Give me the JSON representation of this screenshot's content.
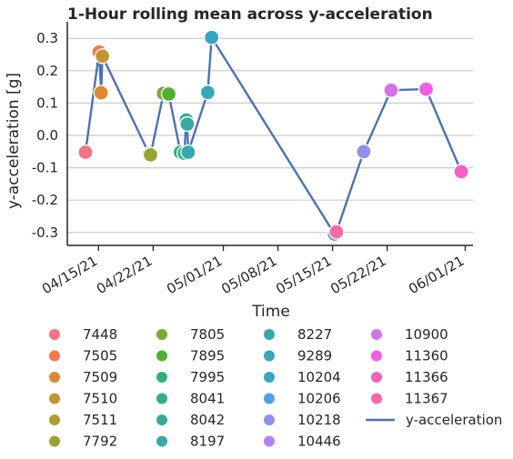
{
  "chart_data": {
    "type": "scatter",
    "title": "1-Hour rolling mean across y-acceleration",
    "xlabel": "Time",
    "ylabel": "y-acceleration [g]",
    "x_tick_labels": [
      "04/15/21",
      "04/22/21",
      "05/01/21",
      "05/08/21",
      "05/15/21",
      "05/22/21",
      "06/01/21"
    ],
    "x_tick_dates": [
      "2021-04-15",
      "2021-04-22",
      "2021-05-01",
      "2021-05-08",
      "2021-05-15",
      "2021-05-22",
      "2021-06-01"
    ],
    "xlim": [
      "2021-04-11",
      "2021-06-02"
    ],
    "y_ticks": [
      -0.3,
      -0.2,
      -0.1,
      0.0,
      0.1,
      0.2,
      0.3
    ],
    "ylim": [
      -0.34,
      0.34
    ],
    "grid": "horizontal",
    "line_series": {
      "name": "y-acceleration",
      "color": "#4c72b0",
      "points": [
        {
          "x": "2021-04-13 08:00",
          "y": -0.052
        },
        {
          "x": "2021-04-15 02:00",
          "y": 0.258
        },
        {
          "x": "2021-04-15 08:00",
          "y": 0.132
        },
        {
          "x": "2021-04-15 12:00",
          "y": 0.245
        },
        {
          "x": "2021-04-21 12:00",
          "y": -0.058
        },
        {
          "x": "2021-04-21 16:00",
          "y": -0.06
        },
        {
          "x": "2021-04-23 08:00",
          "y": 0.13
        },
        {
          "x": "2021-04-24 00:00",
          "y": 0.128
        },
        {
          "x": "2021-04-25 12:00",
          "y": -0.052
        },
        {
          "x": "2021-04-26 00:00",
          "y": -0.055
        },
        {
          "x": "2021-04-26 06:00",
          "y": 0.048
        },
        {
          "x": "2021-04-26 09:00",
          "y": 0.035
        },
        {
          "x": "2021-04-26 12:00",
          "y": -0.052
        },
        {
          "x": "2021-04-29 00:00",
          "y": 0.133
        },
        {
          "x": "2021-04-29 12:00",
          "y": 0.303
        },
        {
          "x": "2021-05-15 06:00",
          "y": -0.305
        },
        {
          "x": "2021-05-15 12:00",
          "y": -0.298
        },
        {
          "x": "2021-05-19 00:00",
          "y": -0.05
        },
        {
          "x": "2021-05-22 12:00",
          "y": 0.14
        },
        {
          "x": "2021-05-27 00:00",
          "y": 0.143
        },
        {
          "x": "2021-05-31 12:00",
          "y": -0.112
        }
      ]
    },
    "series": [
      {
        "name": "7448",
        "color": "#f77189",
        "points": [
          {
            "x": "2021-04-13 08:00",
            "y": -0.052
          }
        ]
      },
      {
        "name": "7505",
        "color": "#f7754f",
        "points": [
          {
            "x": "2021-04-15 02:00",
            "y": 0.258
          }
        ]
      },
      {
        "name": "7509",
        "color": "#dc8932",
        "points": [
          {
            "x": "2021-04-15 08:00",
            "y": 0.132
          }
        ]
      },
      {
        "name": "7510",
        "color": "#c39532",
        "points": [
          {
            "x": "2021-04-15 12:00",
            "y": 0.245
          }
        ]
      },
      {
        "name": "7511",
        "color": "#ae9d31",
        "points": [
          {
            "x": "2021-04-21 12:00",
            "y": -0.058
          }
        ]
      },
      {
        "name": "7792",
        "color": "#97a431",
        "points": [
          {
            "x": "2021-04-21 16:00",
            "y": -0.06
          }
        ]
      },
      {
        "name": "7805",
        "color": "#77ab31",
        "points": [
          {
            "x": "2021-04-23 08:00",
            "y": 0.13
          }
        ]
      },
      {
        "name": "7895",
        "color": "#4fb031",
        "points": [
          {
            "x": "2021-04-24 00:00",
            "y": 0.128
          }
        ]
      },
      {
        "name": "7995",
        "color": "#33b07a",
        "points": [
          {
            "x": "2021-04-25 12:00",
            "y": -0.052
          }
        ]
      },
      {
        "name": "8041",
        "color": "#35ad8d",
        "points": [
          {
            "x": "2021-04-26 00:00",
            "y": -0.055
          }
        ]
      },
      {
        "name": "8042",
        "color": "#36ab9a",
        "points": [
          {
            "x": "2021-04-26 06:00",
            "y": 0.048
          }
        ]
      },
      {
        "name": "8197",
        "color": "#37aaa4",
        "points": [
          {
            "x": "2021-04-26 09:00",
            "y": 0.035
          }
        ]
      },
      {
        "name": "8227",
        "color": "#38a8ae",
        "points": [
          {
            "x": "2021-04-26 12:00",
            "y": -0.052
          }
        ]
      },
      {
        "name": "9289",
        "color": "#39a7b8",
        "points": [
          {
            "x": "2021-04-29 00:00",
            "y": 0.133
          }
        ]
      },
      {
        "name": "10204",
        "color": "#3ba3c4",
        "points": [
          {
            "x": "2021-04-29 12:00",
            "y": 0.303
          }
        ]
      },
      {
        "name": "10206",
        "color": "#50a0e8",
        "points": [
          {
            "x": "2021-05-15 06:00",
            "y": -0.305
          }
        ]
      },
      {
        "name": "10218",
        "color": "#8e92ec",
        "points": [
          {
            "x": "2021-05-19 00:00",
            "y": -0.05
          }
        ]
      },
      {
        "name": "10446",
        "color": "#b183f2",
        "points": [
          {
            "x": "2021-05-22 12:00",
            "y": 0.14
          }
        ]
      },
      {
        "name": "10900",
        "color": "#d472ec",
        "points": [
          {
            "x": "2021-05-22 12:00",
            "y": 0.14
          }
        ]
      },
      {
        "name": "11360",
        "color": "#ef5ee6",
        "points": [
          {
            "x": "2021-05-27 00:00",
            "y": 0.143
          }
        ]
      },
      {
        "name": "11366",
        "color": "#f55fc4",
        "points": [
          {
            "x": "2021-05-31 12:00",
            "y": -0.112
          }
        ]
      },
      {
        "name": "11367",
        "color": "#f669a8",
        "points": [
          {
            "x": "2021-05-15 12:00",
            "y": -0.298
          }
        ]
      }
    ],
    "legend": {
      "placement": "below",
      "columns": 4,
      "entries": [
        "7448",
        "7505",
        "7509",
        "7510",
        "7511",
        "7792",
        "7805",
        "7895",
        "7995",
        "8041",
        "8042",
        "8197",
        "8227",
        "9289",
        "10204",
        "10206",
        "10218",
        "10446",
        "10900",
        "11360",
        "11366",
        "11367",
        "y-acceleration"
      ]
    }
  }
}
